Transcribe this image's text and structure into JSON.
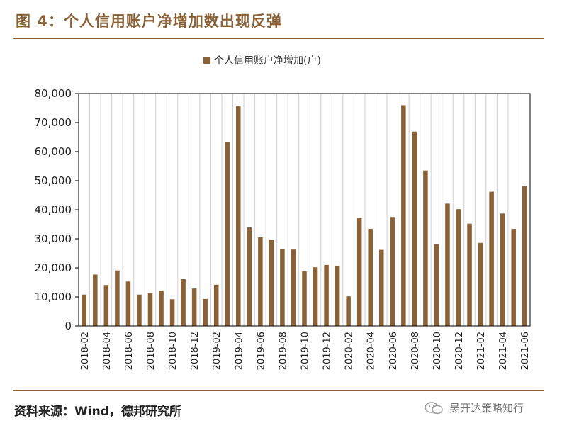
{
  "figure": {
    "title": "图 4：个人信用账户净增加数出现反弹",
    "source": "资料来源：Wind，德邦研究所",
    "watermark": "吴开达策略知行"
  },
  "colors": {
    "accent": "#8B6237",
    "bar": "#8B6237"
  },
  "chart_data": {
    "type": "bar",
    "title": "",
    "legend": [
      "个人信用账户净增加(户)"
    ],
    "legend_position": "top-center",
    "xlabel": "",
    "ylabel": "",
    "ylim": [
      0,
      80000
    ],
    "yticks": [
      "0",
      "10,000",
      "20,000",
      "30,000",
      "40,000",
      "50,000",
      "60,000",
      "70,000",
      "80,000"
    ],
    "ytick_values": [
      0,
      10000,
      20000,
      30000,
      40000,
      50000,
      60000,
      70000,
      80000
    ],
    "grid": "vertical",
    "categories": [
      "2018-02",
      "2018-03",
      "2018-04",
      "2018-05",
      "2018-06",
      "2018-07",
      "2018-08",
      "2018-09",
      "2018-10",
      "2018-11",
      "2018-12",
      "2019-01",
      "2019-02",
      "2019-03",
      "2019-04",
      "2019-05",
      "2019-06",
      "2019-07",
      "2019-08",
      "2019-09",
      "2019-10",
      "2019-11",
      "2019-12",
      "2020-01",
      "2020-02",
      "2020-03",
      "2020-04",
      "2020-05",
      "2020-06",
      "2020-07",
      "2020-08",
      "2020-09",
      "2020-10",
      "2020-11",
      "2020-12",
      "2021-01",
      "2021-02",
      "2021-03",
      "2021-04",
      "2021-05",
      "2021-06"
    ],
    "xtick_labels": [
      "2018-02",
      "2018-04",
      "2018-06",
      "2018-08",
      "2018-10",
      "2018-12",
      "2019-02",
      "2019-04",
      "2019-06",
      "2019-08",
      "2019-10",
      "2019-12",
      "2020-02",
      "2020-04",
      "2020-06",
      "2020-08",
      "2020-10",
      "2020-12",
      "2021-02",
      "2021-04",
      "2021-06"
    ],
    "series": [
      {
        "name": "个人信用账户净增加(户)",
        "values": [
          10800,
          17700,
          14100,
          19100,
          15300,
          10800,
          11300,
          12200,
          9200,
          16100,
          12900,
          9300,
          14200,
          63400,
          75800,
          33900,
          30500,
          29700,
          26400,
          26300,
          18800,
          20200,
          21000,
          20600,
          10200,
          37300,
          33400,
          26200,
          37500,
          76000,
          66900,
          53500,
          28200,
          42100,
          40200,
          35200,
          28600,
          46200,
          38700,
          33400,
          48100
        ]
      }
    ]
  }
}
